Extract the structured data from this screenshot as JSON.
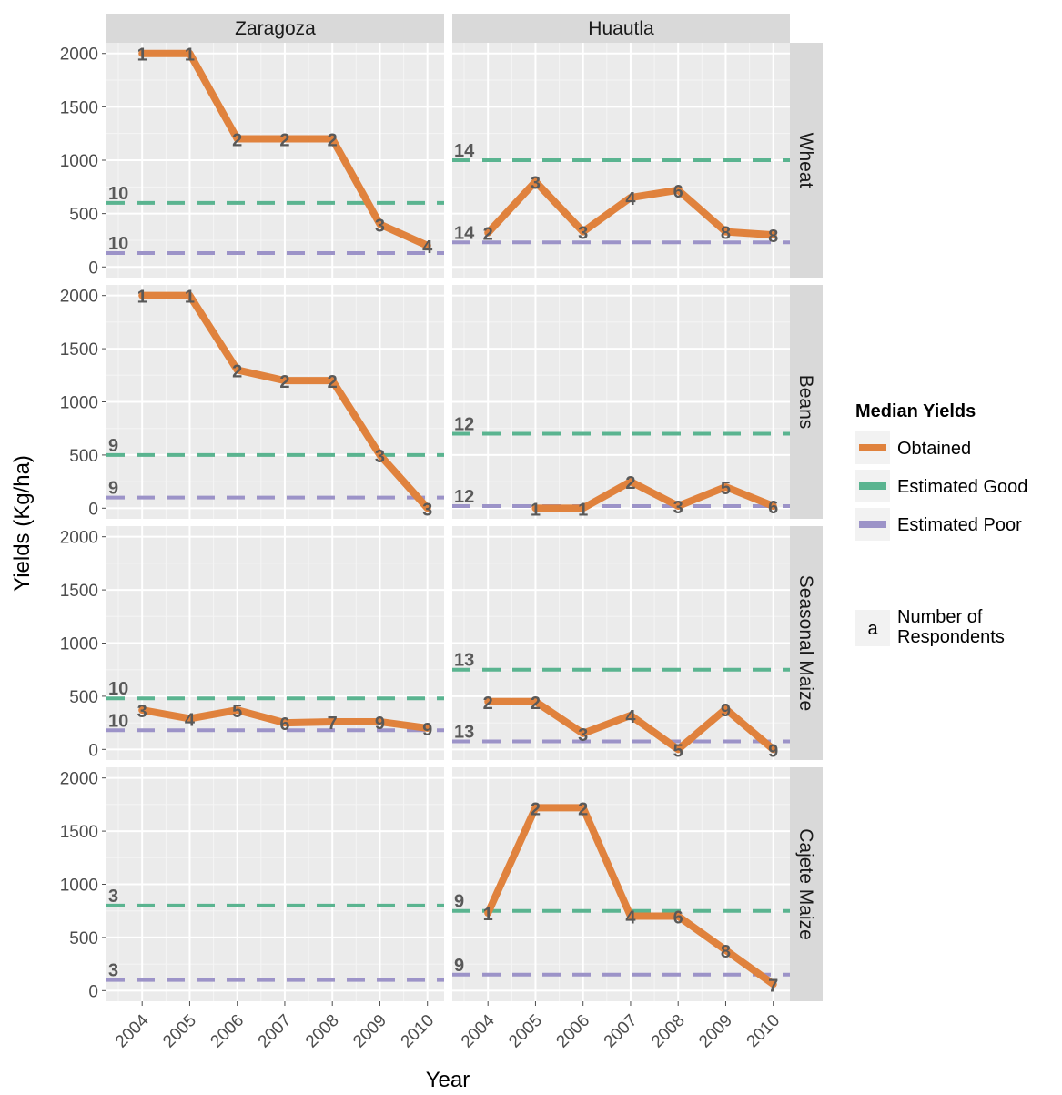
{
  "chart_data": {
    "type": "line",
    "xlabel": "Year",
    "ylabel": "Yields (Kg/ha)",
    "ylim": [
      -100,
      2100
    ],
    "xlim": [
      2003.25,
      2010.35
    ],
    "x": [
      2004,
      2005,
      2006,
      2007,
      2008,
      2009,
      2010
    ],
    "y_ticks": [
      0,
      500,
      1000,
      1500,
      2000
    ],
    "grid": true,
    "columns": [
      "Zaragoza",
      "Huautla"
    ],
    "rows": [
      "Wheat",
      "Beans",
      "Seasonal Maize",
      "Cajete Maize"
    ],
    "legend": {
      "title": "Median Yields",
      "position": "right",
      "items": [
        {
          "key": "obtained",
          "label": "Obtained",
          "color": "#e0823d"
        },
        {
          "key": "good",
          "label": "Estimated Good",
          "color": "#5ab490"
        },
        {
          "key": "poor",
          "label": "Estimated Poor",
          "color": "#9c93c8"
        }
      ],
      "text_key_symbol": "a",
      "text_key_label": [
        "Number of",
        "Respondents"
      ]
    },
    "panels": [
      {
        "row": 0,
        "col": 0,
        "obtained": [
          [
            2004,
            2000,
            "1"
          ],
          [
            2005,
            2000,
            "1"
          ],
          [
            2006,
            1200,
            "2"
          ],
          [
            2007,
            1200,
            "2"
          ],
          [
            2008,
            1200,
            "2"
          ],
          [
            2009,
            400,
            "3"
          ],
          [
            2010,
            200,
            "4"
          ]
        ],
        "good": {
          "value": 600,
          "n": "10"
        },
        "poor": {
          "value": 130,
          "n": "10"
        }
      },
      {
        "row": 0,
        "col": 1,
        "obtained": [
          [
            2004,
            320,
            "2"
          ],
          [
            2005,
            800,
            "3"
          ],
          [
            2006,
            330,
            "3"
          ],
          [
            2007,
            650,
            "4"
          ],
          [
            2008,
            720,
            "6"
          ],
          [
            2009,
            330,
            "8"
          ],
          [
            2010,
            300,
            "8"
          ]
        ],
        "good": {
          "value": 1000,
          "n": "14"
        },
        "poor": {
          "value": 230,
          "n": "14"
        }
      },
      {
        "row": 1,
        "col": 0,
        "obtained": [
          [
            2004,
            2000,
            "1"
          ],
          [
            2005,
            2000,
            "1"
          ],
          [
            2006,
            1300,
            "2"
          ],
          [
            2007,
            1200,
            "2"
          ],
          [
            2008,
            1200,
            "2"
          ],
          [
            2009,
            500,
            "3"
          ],
          [
            2010,
            0,
            "3"
          ]
        ],
        "good": {
          "value": 500,
          "n": "9"
        },
        "poor": {
          "value": 100,
          "n": "9"
        }
      },
      {
        "row": 1,
        "col": 1,
        "obtained": [
          [
            2005,
            0,
            "1"
          ],
          [
            2006,
            0,
            "1"
          ],
          [
            2007,
            250,
            "2"
          ],
          [
            2008,
            20,
            "3"
          ],
          [
            2009,
            200,
            "5"
          ],
          [
            2010,
            20,
            "6"
          ]
        ],
        "good": {
          "value": 700,
          "n": "12"
        },
        "poor": {
          "value": 20,
          "n": "12"
        }
      },
      {
        "row": 2,
        "col": 0,
        "obtained": [
          [
            2004,
            370,
            "3"
          ],
          [
            2005,
            290,
            "4"
          ],
          [
            2006,
            370,
            "5"
          ],
          [
            2007,
            250,
            "6"
          ],
          [
            2008,
            260,
            "7"
          ],
          [
            2009,
            260,
            "9"
          ],
          [
            2010,
            200,
            "9"
          ]
        ],
        "good": {
          "value": 480,
          "n": "10"
        },
        "poor": {
          "value": 180,
          "n": "10"
        }
      },
      {
        "row": 2,
        "col": 1,
        "obtained": [
          [
            2004,
            450,
            "2"
          ],
          [
            2005,
            450,
            "2"
          ],
          [
            2006,
            150,
            "3"
          ],
          [
            2007,
            320,
            "4"
          ],
          [
            2008,
            0,
            "5"
          ],
          [
            2009,
            380,
            "9"
          ],
          [
            2010,
            0,
            "9"
          ]
        ],
        "good": {
          "value": 750,
          "n": "13"
        },
        "poor": {
          "value": 75,
          "n": "13"
        }
      },
      {
        "row": 3,
        "col": 0,
        "obtained": [],
        "good": {
          "value": 800,
          "n": "3"
        },
        "poor": {
          "value": 100,
          "n": "3"
        }
      },
      {
        "row": 3,
        "col": 1,
        "obtained": [
          [
            2004,
            730,
            "1"
          ],
          [
            2005,
            1720,
            "2"
          ],
          [
            2006,
            1720,
            "2"
          ],
          [
            2007,
            700,
            "4"
          ],
          [
            2008,
            700,
            "6"
          ],
          [
            2009,
            380,
            "8"
          ],
          [
            2010,
            60,
            "7"
          ]
        ],
        "good": {
          "value": 750,
          "n": "9"
        },
        "poor": {
          "value": 150,
          "n": "9"
        }
      }
    ]
  }
}
